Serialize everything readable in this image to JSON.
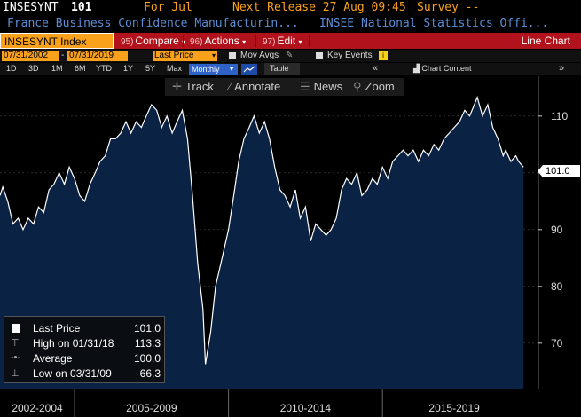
{
  "header": {
    "ticker": "INSESYNT",
    "value": "101",
    "period": "For Jul",
    "next_release": "Next Release 27 Aug 09:45",
    "survey": "Survey --",
    "desc": "France Business Confidence Manufacturin...",
    "source": "INSEE National Statistics Offi..."
  },
  "toolbar": {
    "security": "INSESYNT Index",
    "compare_num": "95)",
    "compare": "Compare",
    "actions_num": "96)",
    "actions": "Actions",
    "edit_num": "97)",
    "edit": "Edit",
    "chart_type": "Line Chart"
  },
  "range_row": {
    "start_date": "07/31/2002",
    "end_date": "07/31/2019",
    "price_field": "Last Price",
    "mov_avgs": "Mov Avgs",
    "key_events": "Key Events"
  },
  "period_row": {
    "periods": [
      "1D",
      "3D",
      "1M",
      "6M",
      "YTD",
      "1Y",
      "5Y",
      "Max"
    ],
    "frequency": "Monthly",
    "table": "Table",
    "chart_content": "Chart Content"
  },
  "tools": {
    "track": "Track",
    "annotate": "Annotate",
    "news": "News",
    "zoom": "Zoom"
  },
  "legend": {
    "last_label": "Last Price",
    "last_value": "101.0",
    "high_label": "High on 01/31/18",
    "high_value": "113.3",
    "avg_label": "Average",
    "avg_value": "100.0",
    "low_label": "Low on 03/31/09",
    "low_value": "66.3"
  },
  "last_badge": "101.0",
  "colors": {
    "fill": "#0a2344",
    "line": "#ffffff",
    "bar": "#b1121b",
    "accent": "#f9a11b",
    "grid": "#555555"
  },
  "chart_data": {
    "type": "area",
    "x_range": [
      "2002-07",
      "2019-07"
    ],
    "ylim": [
      62,
      117
    ],
    "yticks": [
      70,
      80,
      90,
      100,
      110
    ],
    "period_labels": [
      "2002-2004",
      "2005-2009",
      "2010-2014",
      "2015-2019"
    ],
    "values": [
      [
        2002.58,
        96
      ],
      [
        2002.67,
        97.5
      ],
      [
        2002.83,
        95
      ],
      [
        2003.0,
        91
      ],
      [
        2003.17,
        92
      ],
      [
        2003.33,
        90
      ],
      [
        2003.5,
        92
      ],
      [
        2003.67,
        91
      ],
      [
        2003.83,
        94
      ],
      [
        2004.0,
        93
      ],
      [
        2004.17,
        97
      ],
      [
        2004.33,
        98
      ],
      [
        2004.5,
        100
      ],
      [
        2004.67,
        98
      ],
      [
        2004.83,
        101
      ],
      [
        2005.0,
        99
      ],
      [
        2005.17,
        96
      ],
      [
        2005.33,
        95
      ],
      [
        2005.5,
        98
      ],
      [
        2005.67,
        100
      ],
      [
        2005.83,
        102
      ],
      [
        2006.0,
        103
      ],
      [
        2006.17,
        106
      ],
      [
        2006.33,
        106
      ],
      [
        2006.5,
        107
      ],
      [
        2006.67,
        109
      ],
      [
        2006.83,
        107
      ],
      [
        2007.0,
        109
      ],
      [
        2007.17,
        108
      ],
      [
        2007.33,
        110
      ],
      [
        2007.5,
        112
      ],
      [
        2007.67,
        111
      ],
      [
        2007.83,
        108
      ],
      [
        2008.0,
        110
      ],
      [
        2008.17,
        107
      ],
      [
        2008.33,
        109
      ],
      [
        2008.5,
        111
      ],
      [
        2008.67,
        106
      ],
      [
        2008.83,
        96
      ],
      [
        2009.0,
        84
      ],
      [
        2009.17,
        76
      ],
      [
        2009.25,
        66.3
      ],
      [
        2009.42,
        72
      ],
      [
        2009.58,
        80
      ],
      [
        2009.75,
        84
      ],
      [
        2010.0,
        90
      ],
      [
        2010.17,
        96
      ],
      [
        2010.33,
        102
      ],
      [
        2010.5,
        106
      ],
      [
        2010.67,
        108
      ],
      [
        2010.83,
        110
      ],
      [
        2011.0,
        107
      ],
      [
        2011.17,
        109
      ],
      [
        2011.33,
        106
      ],
      [
        2011.5,
        101
      ],
      [
        2011.67,
        97
      ],
      [
        2011.83,
        96
      ],
      [
        2012.0,
        94
      ],
      [
        2012.17,
        97
      ],
      [
        2012.33,
        92
      ],
      [
        2012.5,
        94
      ],
      [
        2012.67,
        88
      ],
      [
        2012.83,
        91
      ],
      [
        2013.0,
        90
      ],
      [
        2013.17,
        89
      ],
      [
        2013.33,
        90
      ],
      [
        2013.5,
        92
      ],
      [
        2013.67,
        97
      ],
      [
        2013.83,
        99
      ],
      [
        2014.0,
        98
      ],
      [
        2014.17,
        100
      ],
      [
        2014.33,
        96
      ],
      [
        2014.5,
        97
      ],
      [
        2014.67,
        99
      ],
      [
        2014.83,
        98
      ],
      [
        2015.0,
        101
      ],
      [
        2015.17,
        99
      ],
      [
        2015.33,
        102
      ],
      [
        2015.5,
        103
      ],
      [
        2015.67,
        104
      ],
      [
        2015.83,
        103
      ],
      [
        2016.0,
        104
      ],
      [
        2016.17,
        102
      ],
      [
        2016.33,
        104
      ],
      [
        2016.5,
        103
      ],
      [
        2016.67,
        105
      ],
      [
        2016.83,
        104
      ],
      [
        2017.0,
        106
      ],
      [
        2017.17,
        107
      ],
      [
        2017.33,
        108
      ],
      [
        2017.5,
        109
      ],
      [
        2017.67,
        111
      ],
      [
        2017.83,
        110
      ],
      [
        2018.08,
        113.3
      ],
      [
        2018.25,
        110
      ],
      [
        2018.42,
        112
      ],
      [
        2018.58,
        108
      ],
      [
        2018.75,
        106
      ],
      [
        2018.92,
        103
      ],
      [
        2019.0,
        104
      ],
      [
        2019.17,
        102
      ],
      [
        2019.33,
        103
      ],
      [
        2019.42,
        102
      ],
      [
        2019.58,
        101
      ]
    ]
  }
}
